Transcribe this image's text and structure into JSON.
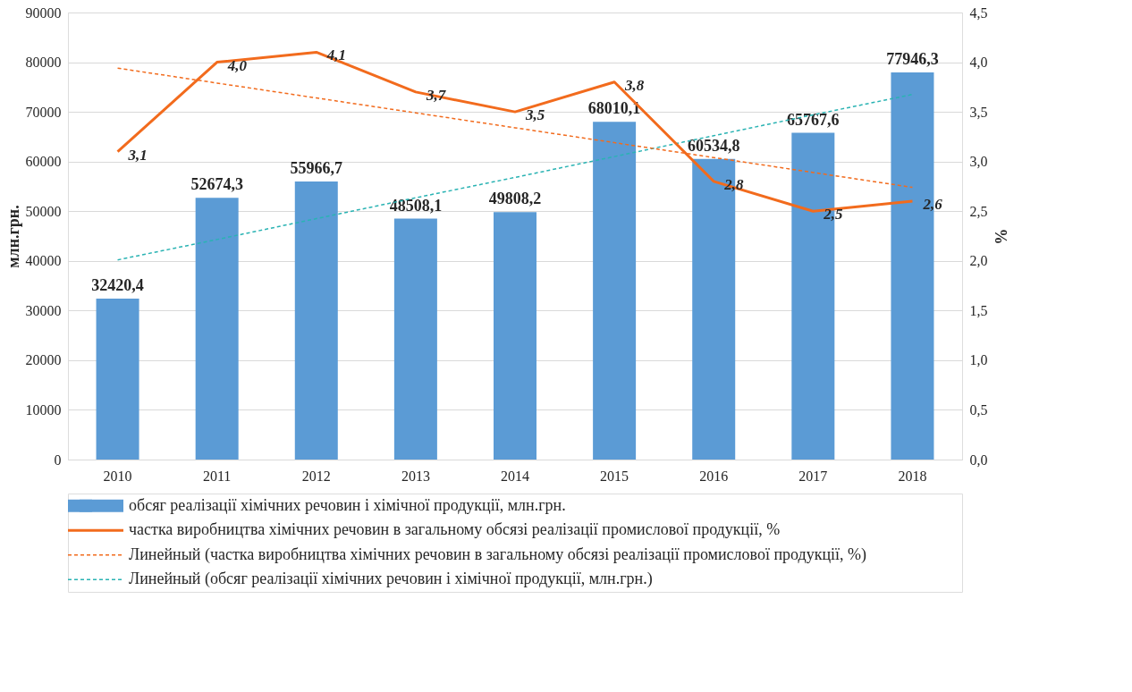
{
  "chart_data": {
    "type": "bar",
    "categories": [
      "2010",
      "2011",
      "2012",
      "2013",
      "2014",
      "2015",
      "2016",
      "2017",
      "2018"
    ],
    "ylabel": "млн.грн.",
    "y2label": "%",
    "ylim": [
      0,
      90000
    ],
    "yticks": [
      0,
      10000,
      20000,
      30000,
      40000,
      50000,
      60000,
      70000,
      80000,
      90000
    ],
    "y2lim": [
      0,
      4.5
    ],
    "y2ticks": [
      {
        "value": 0,
        "label": "0,0"
      },
      {
        "value": 0.5,
        "label": "0,5"
      },
      {
        "value": 1,
        "label": "1,0"
      },
      {
        "value": 1.5,
        "label": "1,5"
      },
      {
        "value": 2,
        "label": "2,0"
      },
      {
        "value": 2.5,
        "label": "2,5"
      },
      {
        "value": 3,
        "label": "3,0"
      },
      {
        "value": 3.5,
        "label": "3,5"
      },
      {
        "value": 4,
        "label": "4,0"
      },
      {
        "value": 4.5,
        "label": "4,5"
      }
    ],
    "grid": "y",
    "legend": "bottom",
    "series": [
      {
        "name": "обсяг реалізації хімічних речовин і хімічної продукції, млн.грн.",
        "color": "#5b9bd5",
        "values": [
          32420.4,
          52674.3,
          55966.7,
          48508.1,
          49808.2,
          68010.1,
          60534.8,
          65767.6,
          77946.3
        ],
        "value_labels": [
          "32420,4",
          "52674,3",
          "55966,7",
          "48508,1",
          "49808,2",
          "68010,1",
          "60534,8",
          "65767,6",
          "77946,3"
        ]
      },
      {
        "name": "частка виробництва хімічних речовин в загальному обсязі реалізації промислової продукції, %",
        "type": "line",
        "axis": "y2",
        "color": "#f26b1d",
        "line_style": "solid",
        "values": [
          3.1,
          4.0,
          4.1,
          3.7,
          3.5,
          3.8,
          2.8,
          2.5,
          2.6
        ],
        "value_labels": [
          "3,1",
          "4,0",
          "4,1",
          "3,7",
          "3,5",
          "3,8",
          "2,8",
          "2,5",
          "2,6"
        ]
      },
      {
        "name": "Линейный (частка виробництва хімічних речовин в загальному обсязі реалізації промислової продукції, %)",
        "type": "line",
        "axis": "y2",
        "color": "#f26b1d",
        "line_style": "dashed",
        "values": [
          3.94,
          3.79,
          3.64,
          3.49,
          3.34,
          3.19,
          3.04,
          2.89,
          2.74
        ]
      },
      {
        "name": "Линейный (обсяг реалізації хімічних речовин і хімічної продукції, млн.грн.)",
        "type": "line",
        "color": "#2ab3b3",
        "line_style": "dashed",
        "values": [
          40200,
          44300,
          48500,
          52700,
          56800,
          61000,
          65200,
          69400,
          73500
        ]
      }
    ]
  }
}
